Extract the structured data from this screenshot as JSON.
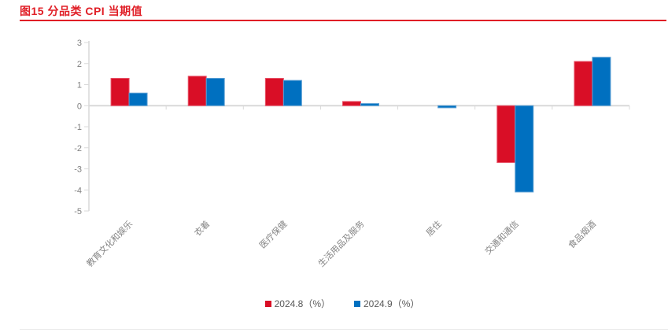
{
  "page": {
    "title": "图15 分品类 CPI 当期值"
  },
  "chart_data": {
    "type": "bar",
    "title": "分品类 CPI 当期值",
    "categories": [
      "教育文化和娱乐",
      "衣着",
      "医疗保健",
      "生活用品及服务",
      "居住",
      "交通和通信",
      "食品烟酒"
    ],
    "series": [
      {
        "name": "2024.8（%）",
        "color": "#D90E26",
        "stroke": "#E8566B",
        "values": [
          1.3,
          1.4,
          1.3,
          0.2,
          0.0,
          -2.7,
          2.1
        ]
      },
      {
        "name": "2024.9（%）",
        "color": "#0070C0",
        "stroke": "#5B9FD4",
        "values": [
          0.6,
          1.3,
          1.2,
          0.1,
          -0.1,
          -4.1,
          2.3
        ]
      }
    ],
    "xlabel": "",
    "ylabel": "",
    "ylim": [
      -5,
      3
    ],
    "yticks": [
      3,
      2,
      1,
      0,
      -1,
      -2,
      -3,
      -4,
      -5
    ],
    "grid": false,
    "legend_position": "bottom"
  },
  "colors": {
    "title_red": "#E01E26",
    "axis_line": "#D9D9D9",
    "tick_label": "#808080",
    "legend_text": "#595959",
    "divider": "#ECECEC"
  }
}
